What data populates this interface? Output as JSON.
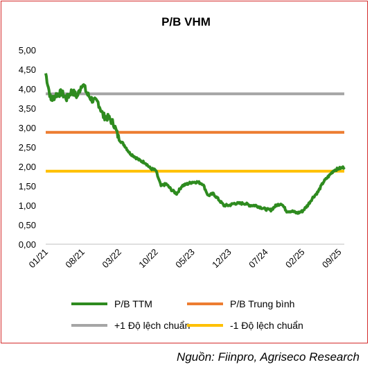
{
  "chart_data": {
    "type": "line",
    "title": "P/B VHM",
    "xlabel": "",
    "ylabel": "",
    "ylim": [
      0,
      5
    ],
    "y_ticks": [
      "0,00",
      "0,50",
      "1,00",
      "1,50",
      "2,00",
      "2,50",
      "3,00",
      "3,50",
      "4,00",
      "4,50",
      "5,00"
    ],
    "x_ticks": [
      "01/21",
      "08/21",
      "03/22",
      "10/22",
      "05/23",
      "12/23",
      "07/24",
      "02/25",
      "09/25"
    ],
    "x_range": [
      "01/21",
      "10/25"
    ],
    "grid": false,
    "legend_position": "bottom",
    "series": [
      {
        "name": "P/B TTM",
        "color": "#2e8b1f",
        "x": [
          "01/21",
          "02/21",
          "03/21",
          "04/21",
          "05/21",
          "06/21",
          "07/21",
          "08/21",
          "09/21",
          "10/21",
          "11/21",
          "12/21",
          "01/22",
          "02/22",
          "03/22",
          "04/22",
          "05/22",
          "06/22",
          "07/22",
          "08/22",
          "09/22",
          "10/22",
          "11/22",
          "12/22",
          "01/23",
          "02/23",
          "03/23",
          "04/23",
          "05/23",
          "06/23",
          "07/23",
          "08/23",
          "09/23",
          "10/23",
          "11/23",
          "12/23",
          "01/24",
          "02/24",
          "03/24",
          "04/24",
          "05/24",
          "06/24",
          "07/24",
          "08/24",
          "09/24",
          "10/24",
          "11/24",
          "12/24",
          "01/25",
          "02/25",
          "03/25",
          "04/25",
          "05/25",
          "06/25",
          "07/25",
          "08/25",
          "09/25",
          "10/25"
        ],
        "values": [
          4.4,
          3.7,
          3.85,
          3.9,
          3.75,
          3.95,
          3.8,
          4.15,
          3.85,
          3.7,
          3.65,
          3.3,
          3.25,
          3.1,
          2.7,
          2.55,
          2.35,
          2.25,
          2.15,
          2.1,
          1.95,
          1.9,
          1.5,
          1.55,
          1.4,
          1.3,
          1.5,
          1.55,
          1.6,
          1.6,
          1.55,
          1.25,
          1.3,
          1.15,
          1.0,
          1.0,
          1.05,
          1.05,
          1.05,
          1.0,
          1.0,
          0.95,
          0.9,
          0.88,
          1.0,
          1.05,
          0.85,
          0.85,
          0.8,
          0.85,
          1.0,
          1.2,
          1.35,
          1.6,
          1.75,
          1.9,
          1.95,
          1.98
        ]
      },
      {
        "name": "P/B Trung bình",
        "color": "#ed7d31",
        "x": [
          "01/21",
          "10/25"
        ],
        "values": [
          2.88,
          2.88
        ]
      },
      {
        "name": "+1 Độ lệch chuẩn",
        "color": "#a5a5a5",
        "x": [
          "01/21",
          "10/25"
        ],
        "values": [
          3.87,
          3.87
        ]
      },
      {
        "name": "-1 Độ lệch chuẩn",
        "color": "#ffc000",
        "x": [
          "01/21",
          "10/25"
        ],
        "values": [
          1.88,
          1.88
        ]
      }
    ]
  },
  "legend": {
    "items": [
      {
        "label": "P/B TTM",
        "color": "#2e8b1f"
      },
      {
        "label": "P/B Trung bình",
        "color": "#ed7d31"
      },
      {
        "label": "+1 Độ lệch chuẩn",
        "color": "#a5a5a5"
      },
      {
        "label": "-1 Độ lệch chuẩn",
        "color": "#ffc000"
      }
    ]
  },
  "source": "Nguồn: Fiinpro, Agriseco Research",
  "frame_color": "#d42a2a"
}
